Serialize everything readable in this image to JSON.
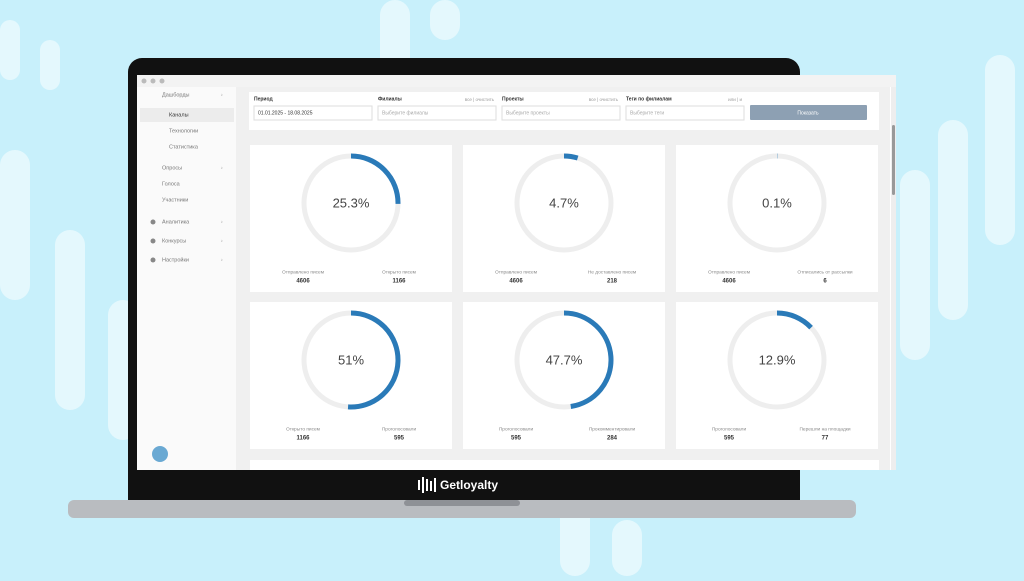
{
  "sidebar": {
    "items": [
      "Дашборды",
      "Каналы",
      "Технологии",
      "Статистика",
      "Опросы",
      "Голоса",
      "Участники",
      "Аналитика",
      "Конкурсы",
      "Настройки"
    ]
  },
  "filters": {
    "period": {
      "label": "Период",
      "value": "01.01.2025 - 18.08.2025"
    },
    "branches": {
      "label": "Филиалы",
      "links": "все | очистить",
      "placeholder": "Выберите филиалы"
    },
    "projects": {
      "label": "Проекты",
      "links": "все | очистить",
      "placeholder": "Выберите проекты"
    },
    "tags": {
      "label": "Теги по филиалам",
      "links": "или | и",
      "placeholder": "Выберите теги"
    },
    "button": "Показать"
  },
  "gauge_range": [
    0,
    100
  ],
  "gauges": [
    {
      "value": 25.3,
      "value_label": "25.3%",
      "left_label": "Отправлено писем",
      "left_value": 4606,
      "right_label": "Открыто писем",
      "right_value": 1166
    },
    {
      "value": 4.7,
      "value_label": "4.7%",
      "left_label": "Отправлено писем",
      "left_value": 4606,
      "right_label": "Не доставлено писем",
      "right_value": 218
    },
    {
      "value": 0.1,
      "value_label": "0.1%",
      "left_label": "Отправлено писем",
      "left_value": 4606,
      "right_label": "Отписались от рассылки",
      "right_value": 6
    },
    {
      "value": 51,
      "value_label": "51%",
      "left_label": "Открыто писем",
      "left_value": 1166,
      "right_label": "Проголосовали",
      "right_value": 595
    },
    {
      "value": 47.7,
      "value_label": "47.7%",
      "left_label": "Проголосовали",
      "left_value": 595,
      "right_label": "Прокомментировали",
      "right_value": 284
    },
    {
      "value": 12.9,
      "value_label": "12.9%",
      "left_label": "Проголосовали",
      "left_value": 595,
      "right_label": "Перешли на площадки",
      "right_value": 77
    }
  ],
  "brand": "Getloyalty"
}
